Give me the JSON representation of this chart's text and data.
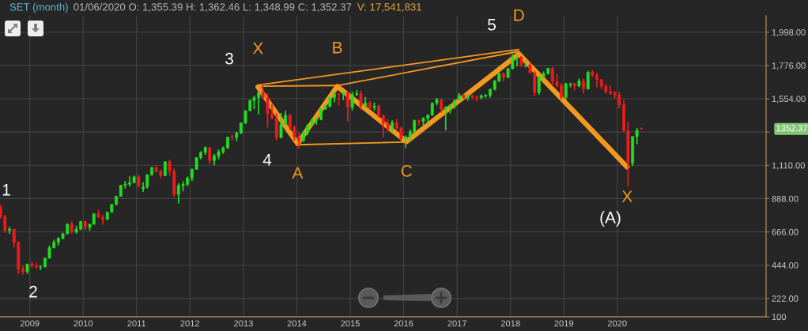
{
  "chart_data": {
    "type": "candlestick",
    "title": "SET (month)",
    "subtitle": "01/06/2020 O: 1,355.39 H: 1,362.46 L: 1,348.99 C: 1,352.37",
    "x": [
      "2008-06-15",
      "2008-07-15",
      "2008-08-15",
      "2008-09-15",
      "2008-10-15",
      "2008-11-15",
      "2008-12-15",
      "2009-01-15",
      "2009-02-15",
      "2009-03-15",
      "2009-04-15",
      "2009-05-15",
      "2009-06-15",
      "2009-07-15",
      "2009-08-15",
      "2009-09-15",
      "2009-10-15",
      "2009-11-15",
      "2009-12-15",
      "2010-01-15",
      "2010-02-15",
      "2010-03-15",
      "2010-04-15",
      "2010-05-15",
      "2010-06-15",
      "2010-07-15",
      "2010-08-15",
      "2010-09-15",
      "2010-10-15",
      "2010-11-15",
      "2010-12-15",
      "2011-01-15",
      "2011-02-15",
      "2011-03-15",
      "2011-04-15",
      "2011-05-15",
      "2011-06-15",
      "2011-07-15",
      "2011-08-15",
      "2011-09-15",
      "2011-10-15",
      "2011-11-15",
      "2011-12-15",
      "2012-01-15",
      "2012-02-15",
      "2012-03-15",
      "2012-04-15",
      "2012-05-15",
      "2012-06-15",
      "2012-07-15",
      "2012-08-15",
      "2012-09-15",
      "2012-10-15",
      "2012-11-15",
      "2012-12-15",
      "2013-01-15",
      "2013-02-15",
      "2013-03-15",
      "2013-04-15",
      "2013-05-15",
      "2013-06-15",
      "2013-07-15",
      "2013-08-15",
      "2013-09-15",
      "2013-10-15",
      "2013-11-15",
      "2013-12-15",
      "2014-01-15",
      "2014-02-15",
      "2014-03-15",
      "2014-04-15",
      "2014-05-15",
      "2014-06-15",
      "2014-07-15",
      "2014-08-15",
      "2014-09-15",
      "2014-10-15",
      "2014-11-15",
      "2014-12-15",
      "2015-01-15",
      "2015-02-15",
      "2015-03-15",
      "2015-04-15",
      "2015-05-15",
      "2015-06-15",
      "2015-07-15",
      "2015-08-15",
      "2015-09-15",
      "2015-10-15",
      "2015-11-15",
      "2015-12-15",
      "2016-01-15",
      "2016-02-15",
      "2016-03-15",
      "2016-04-15",
      "2016-05-15",
      "2016-06-15",
      "2016-07-15",
      "2016-08-15",
      "2016-09-15",
      "2016-10-15",
      "2016-11-15",
      "2016-12-15",
      "2017-01-15",
      "2017-02-15",
      "2017-03-15",
      "2017-04-15",
      "2017-05-15",
      "2017-06-15",
      "2017-07-15",
      "2017-08-15",
      "2017-09-15",
      "2017-10-15",
      "2017-11-15",
      "2017-12-15",
      "2018-01-15",
      "2018-02-15",
      "2018-03-15",
      "2018-04-15",
      "2018-05-15",
      "2018-06-15",
      "2018-07-15",
      "2018-08-15",
      "2018-09-15",
      "2018-10-15",
      "2018-11-15",
      "2018-12-15",
      "2019-01-15",
      "2019-02-15",
      "2019-03-15",
      "2019-04-15",
      "2019-05-15",
      "2019-06-15",
      "2019-07-15",
      "2019-08-15",
      "2019-09-15",
      "2019-10-15",
      "2019-11-15",
      "2019-12-15",
      "2020-01-15",
      "2020-02-15",
      "2020-03-15",
      "2020-04-15",
      "2020-05-15",
      "2020-06-15"
    ],
    "ohlc": [
      [
        832,
        845,
        755,
        769
      ],
      [
        769,
        780,
        660,
        677
      ],
      [
        677,
        700,
        653,
        684
      ],
      [
        684,
        688,
        563,
        597
      ],
      [
        597,
        602,
        384,
        417
      ],
      [
        417,
        440,
        380,
        401
      ],
      [
        401,
        455,
        385,
        450
      ],
      [
        450,
        470,
        428,
        438
      ],
      [
        438,
        458,
        421,
        432
      ],
      [
        432,
        443,
        411,
        433
      ],
      [
        433,
        494,
        429,
        491
      ],
      [
        491,
        575,
        488,
        560
      ],
      [
        560,
        614,
        556,
        598
      ],
      [
        598,
        630,
        575,
        624
      ],
      [
        624,
        660,
        616,
        653
      ],
      [
        653,
        722,
        650,
        717
      ],
      [
        717,
        737,
        655,
        665
      ],
      [
        665,
        708,
        654,
        684
      ],
      [
        684,
        740,
        680,
        735
      ],
      [
        735,
        742,
        680,
        697
      ],
      [
        697,
        720,
        674,
        717
      ],
      [
        717,
        790,
        715,
        788
      ],
      [
        788,
        814,
        760,
        764
      ],
      [
        764,
        780,
        714,
        750
      ],
      [
        750,
        800,
        745,
        797
      ],
      [
        797,
        852,
        795,
        849
      ],
      [
        849,
        905,
        844,
        904
      ],
      [
        904,
        980,
        903,
        977
      ],
      [
        977,
        1005,
        955,
        984
      ],
      [
        984,
        1036,
        968,
        994
      ],
      [
        994,
        1042,
        990,
        1033
      ],
      [
        1033,
        1047,
        962,
        973
      ],
      [
        955,
        997,
        932,
        966
      ],
      [
        966,
        1048,
        955,
        1048
      ],
      [
        1048,
        1101,
        1040,
        1093
      ],
      [
        1093,
        1107,
        1062,
        1070
      ],
      [
        1070,
        1082,
        1024,
        1042
      ],
      [
        1042,
        1136,
        1038,
        1134
      ],
      [
        1134,
        1149,
        1040,
        1071
      ],
      [
        1071,
        1087,
        899,
        916
      ],
      [
        916,
        990,
        855,
        975
      ],
      [
        975,
        1003,
        936,
        983
      ],
      [
        983,
        1035,
        970,
        1025
      ],
      [
        1025,
        1087,
        1005,
        1084
      ],
      [
        1084,
        1162,
        1080,
        1161
      ],
      [
        1161,
        1204,
        1150,
        1197
      ],
      [
        1197,
        1236,
        1180,
        1228
      ],
      [
        1228,
        1232,
        1121,
        1142
      ],
      [
        1142,
        1185,
        1110,
        1172
      ],
      [
        1172,
        1216,
        1150,
        1200
      ],
      [
        1200,
        1235,
        1186,
        1226
      ],
      [
        1226,
        1300,
        1220,
        1298
      ],
      [
        1300,
        1313,
        1276,
        1296
      ],
      [
        1296,
        1334,
        1271,
        1325
      ],
      [
        1325,
        1394,
        1318,
        1392
      ],
      [
        1392,
        1476,
        1386,
        1474
      ],
      [
        1474,
        1548,
        1471,
        1542
      ],
      [
        1542,
        1575,
        1485,
        1561
      ],
      [
        1561,
        1598,
        1450,
        1598
      ],
      [
        1598,
        1650,
        1555,
        1562
      ],
      [
        1562,
        1590,
        1363,
        1452
      ],
      [
        1452,
        1520,
        1420,
        1423
      ],
      [
        1423,
        1460,
        1276,
        1294
      ],
      [
        1294,
        1460,
        1290,
        1383
      ],
      [
        1383,
        1473,
        1380,
        1443
      ],
      [
        1443,
        1451,
        1345,
        1365
      ],
      [
        1365,
        1375,
        1275,
        1299
      ],
      [
        1299,
        1328,
        1220,
        1274
      ],
      [
        1274,
        1340,
        1266,
        1327
      ],
      [
        1327,
        1383,
        1310,
        1376
      ],
      [
        1376,
        1423,
        1370,
        1415
      ],
      [
        1412,
        1430,
        1381,
        1416
      ],
      [
        1416,
        1490,
        1410,
        1486
      ],
      [
        1486,
        1516,
        1480,
        1502
      ],
      [
        1502,
        1570,
        1497,
        1562
      ],
      [
        1562,
        1600,
        1531,
        1586
      ],
      [
        1586,
        1593,
        1510,
        1584
      ],
      [
        1584,
        1600,
        1545,
        1594
      ],
      [
        1594,
        1601,
        1403,
        1498
      ],
      [
        1498,
        1600,
        1477,
        1581
      ],
      [
        1581,
        1613,
        1573,
        1587
      ],
      [
        1587,
        1610,
        1480,
        1506
      ],
      [
        1506,
        1565,
        1490,
        1527
      ],
      [
        1527,
        1540,
        1480,
        1496
      ],
      [
        1496,
        1530,
        1475,
        1505
      ],
      [
        1505,
        1515,
        1430,
        1440
      ],
      [
        1440,
        1450,
        1295,
        1388
      ],
      [
        1388,
        1420,
        1336,
        1349
      ],
      [
        1349,
        1410,
        1335,
        1395
      ],
      [
        1395,
        1420,
        1345,
        1358
      ],
      [
        1358,
        1370,
        1280,
        1288
      ],
      [
        1288,
        1310,
        1224,
        1301
      ],
      [
        1301,
        1350,
        1268,
        1332
      ],
      [
        1332,
        1415,
        1325,
        1408
      ],
      [
        1408,
        1415,
        1375,
        1405
      ],
      [
        1405,
        1430,
        1370,
        1424
      ],
      [
        1424,
        1450,
        1380,
        1445
      ],
      [
        1445,
        1530,
        1440,
        1524
      ],
      [
        1524,
        1560,
        1510,
        1548
      ],
      [
        1548,
        1555,
        1460,
        1483
      ],
      [
        1483,
        1505,
        1343,
        1496
      ],
      [
        1496,
        1517,
        1455,
        1510
      ],
      [
        1510,
        1548,
        1488,
        1543
      ],
      [
        1543,
        1593,
        1540,
        1577
      ],
      [
        1577,
        1590,
        1555,
        1560
      ],
      [
        1560,
        1582,
        1540,
        1575
      ],
      [
        1575,
        1580,
        1550,
        1566
      ],
      [
        1566,
        1574,
        1535,
        1561
      ],
      [
        1561,
        1582,
        1550,
        1575
      ],
      [
        1572,
        1585,
        1560,
        1576
      ],
      [
        1576,
        1620,
        1561,
        1617
      ],
      [
        1617,
        1678,
        1610,
        1673
      ],
      [
        1673,
        1728,
        1665,
        1721
      ],
      [
        1721,
        1730,
        1670,
        1697
      ],
      [
        1697,
        1760,
        1690,
        1754
      ],
      [
        1754,
        1852,
        1750,
        1827
      ],
      [
        1827,
        1848,
        1770,
        1830
      ],
      [
        1830,
        1840,
        1765,
        1776
      ],
      [
        1776,
        1815,
        1760,
        1780
      ],
      [
        1780,
        1795,
        1720,
        1727
      ],
      [
        1727,
        1740,
        1571,
        1596
      ],
      [
        1596,
        1705,
        1580,
        1702
      ],
      [
        1702,
        1736,
        1690,
        1722
      ],
      [
        1722,
        1760,
        1715,
        1756
      ],
      [
        1756,
        1766,
        1636,
        1669
      ],
      [
        1669,
        1720,
        1630,
        1642
      ],
      [
        1642,
        1660,
        1548,
        1564
      ],
      [
        1564,
        1660,
        1550,
        1653
      ],
      [
        1650,
        1660,
        1630,
        1654
      ],
      [
        1654,
        1660,
        1610,
        1639
      ],
      [
        1639,
        1688,
        1630,
        1673
      ],
      [
        1673,
        1690,
        1588,
        1620
      ],
      [
        1620,
        1740,
        1615,
        1730
      ],
      [
        1730,
        1748,
        1700,
        1711
      ],
      [
        1711,
        1725,
        1630,
        1682
      ],
      [
        1682,
        1685,
        1620,
        1637
      ],
      [
        1637,
        1655,
        1590,
        1602
      ],
      [
        1602,
        1640,
        1580,
        1592
      ],
      [
        1592,
        1605,
        1555,
        1580
      ],
      [
        1580,
        1600,
        1490,
        1514
      ],
      [
        1514,
        1545,
        1333,
        1341
      ],
      [
        1341,
        1400,
        969,
        1126
      ],
      [
        1126,
        1303,
        1105,
        1302
      ],
      [
        1302,
        1360,
        1250,
        1343
      ],
      [
        1355.39,
        1362.46,
        1348.99,
        1352.37
      ]
    ],
    "colors": [
      "#ee1c1c",
      "#ee1c1c",
      "#22dd22",
      "#ee1c1c",
      "#ee1c1c",
      "#ee1c1c",
      "#22dd22",
      "#ee1c1c",
      "#ee1c1c",
      "#22dd22",
      "#22dd22",
      "#22dd22",
      "#22dd22",
      "#22dd22",
      "#22dd22",
      "#22dd22",
      "#ee1c1c",
      "#22dd22",
      "#22dd22",
      "#ee1c1c",
      "#22dd22",
      "#22dd22",
      "#ee1c1c",
      "#ee1c1c",
      "#22dd22",
      "#22dd22",
      "#22dd22",
      "#22dd22",
      "#22dd22",
      "#22dd22",
      "#22dd22",
      "#ee1c1c",
      "#22dd22",
      "#22dd22",
      "#22dd22",
      "#ee1c1c",
      "#ee1c1c",
      "#22dd22",
      "#ee1c1c",
      "#ee1c1c",
      "#22dd22",
      "#22dd22",
      "#22dd22",
      "#22dd22",
      "#22dd22",
      "#22dd22",
      "#22dd22",
      "#ee1c1c",
      "#22dd22",
      "#22dd22",
      "#22dd22",
      "#22dd22",
      "#ee1c1c",
      "#22dd22",
      "#22dd22",
      "#22dd22",
      "#22dd22",
      "#22dd22",
      "#22dd22",
      "#ee1c1c",
      "#ee1c1c",
      "#ee1c1c",
      "#ee1c1c",
      "#22dd22",
      "#22dd22",
      "#ee1c1c",
      "#ee1c1c",
      "#ee1c1c",
      "#22dd22",
      "#22dd22",
      "#22dd22",
      "#22dd22",
      "#22dd22",
      "#22dd22",
      "#22dd22",
      "#22dd22",
      "#ee1c1c",
      "#22dd22",
      "#ee1c1c",
      "#22dd22",
      "#22dd22",
      "#ee1c1c",
      "#22dd22",
      "#ee1c1c",
      "#22dd22",
      "#ee1c1c",
      "#ee1c1c",
      "#ee1c1c",
      "#22dd22",
      "#ee1c1c",
      "#ee1c1c",
      "#22dd22",
      "#22dd22",
      "#22dd22",
      "#ee1c1c",
      "#22dd22",
      "#22dd22",
      "#22dd22",
      "#22dd22",
      "#ee1c1c",
      "#22dd22",
      "#22dd22",
      "#22dd22",
      "#22dd22",
      "#ee1c1c",
      "#22dd22",
      "#ee1c1c",
      "#ee1c1c",
      "#22dd22",
      "#22dd22",
      "#22dd22",
      "#22dd22",
      "#22dd22",
      "#ee1c1c",
      "#22dd22",
      "#22dd22",
      "#22dd22",
      "#ee1c1c",
      "#22dd22",
      "#ee1c1c",
      "#ee1c1c",
      "#22dd22",
      "#22dd22",
      "#22dd22",
      "#ee1c1c",
      "#ee1c1c",
      "#ee1c1c",
      "#22dd22",
      "#22dd22",
      "#ee1c1c",
      "#22dd22",
      "#ee1c1c",
      "#22dd22",
      "#ee1c1c",
      "#ee1c1c",
      "#ee1c1c",
      "#ee1c1c",
      "#ee1c1c",
      "#ee1c1c",
      "#ee1c1c",
      "#ee1c1c",
      "#ee1c1c",
      "#22dd22",
      "#22dd22",
      "#ee1c1c"
    ],
    "series": [
      {
        "type": "line",
        "color": "#f4991f",
        "x": [
          "2013-04-10",
          "2014-01-06",
          "2014-10-04",
          "2016-01-21",
          "2018-02-27",
          "2020-03-09"
        ],
        "values": [
          1633,
          1255,
          1637,
          1268,
          1853,
          1098
        ],
        "value_labels": [
          "X",
          "A",
          "B",
          "C",
          "D",
          "X"
        ]
      },
      {
        "type": "line",
        "color": "#f4991f",
        "x": [
          "2013-04-10",
          "2014-10-04",
          "2018-02-27"
        ],
        "values": [
          1638,
          1642,
          1870
        ]
      },
      {
        "type": "line",
        "color": "#f4991f",
        "x": [
          "2013-04-12",
          "2018-02-25"
        ],
        "values": [
          1645,
          1882
        ]
      },
      {
        "type": "line",
        "color": "#f4991f",
        "x": [
          "2014-01-06",
          "2016-01-21"
        ],
        "values": [
          1247,
          1265
        ]
      }
    ],
    "annotations": [
      "1",
      "2",
      "3",
      "4",
      "5",
      "(A)",
      "V: 17,541,831",
      "1352.37"
    ],
    "xlim": [
      "2008-06-11",
      "2022-10-15"
    ],
    "xticks": [
      "2009",
      "2010",
      "2011",
      "2012",
      "2013",
      "2014",
      "2015",
      "2016",
      "2017",
      "2018",
      "2019",
      "2020"
    ],
    "ylim": [
      100,
      2107
    ],
    "yticks": [
      100,
      {
        "value": 222,
        "label": "222.00"
      },
      {
        "value": 444,
        "label": "444.00"
      },
      {
        "value": 666,
        "label": "666.00"
      },
      {
        "value": 888,
        "label": "888.00"
      },
      {
        "value": 1110,
        "label": "1,110.00"
      },
      {
        "value": 1332,
        "label": null
      },
      {
        "value": 1554,
        "label": "1,554.00"
      },
      {
        "value": 1776,
        "label": "1,776.00"
      },
      {
        "value": 1998,
        "label": "1,998.00"
      }
    ],
    "grid": true
  }
}
